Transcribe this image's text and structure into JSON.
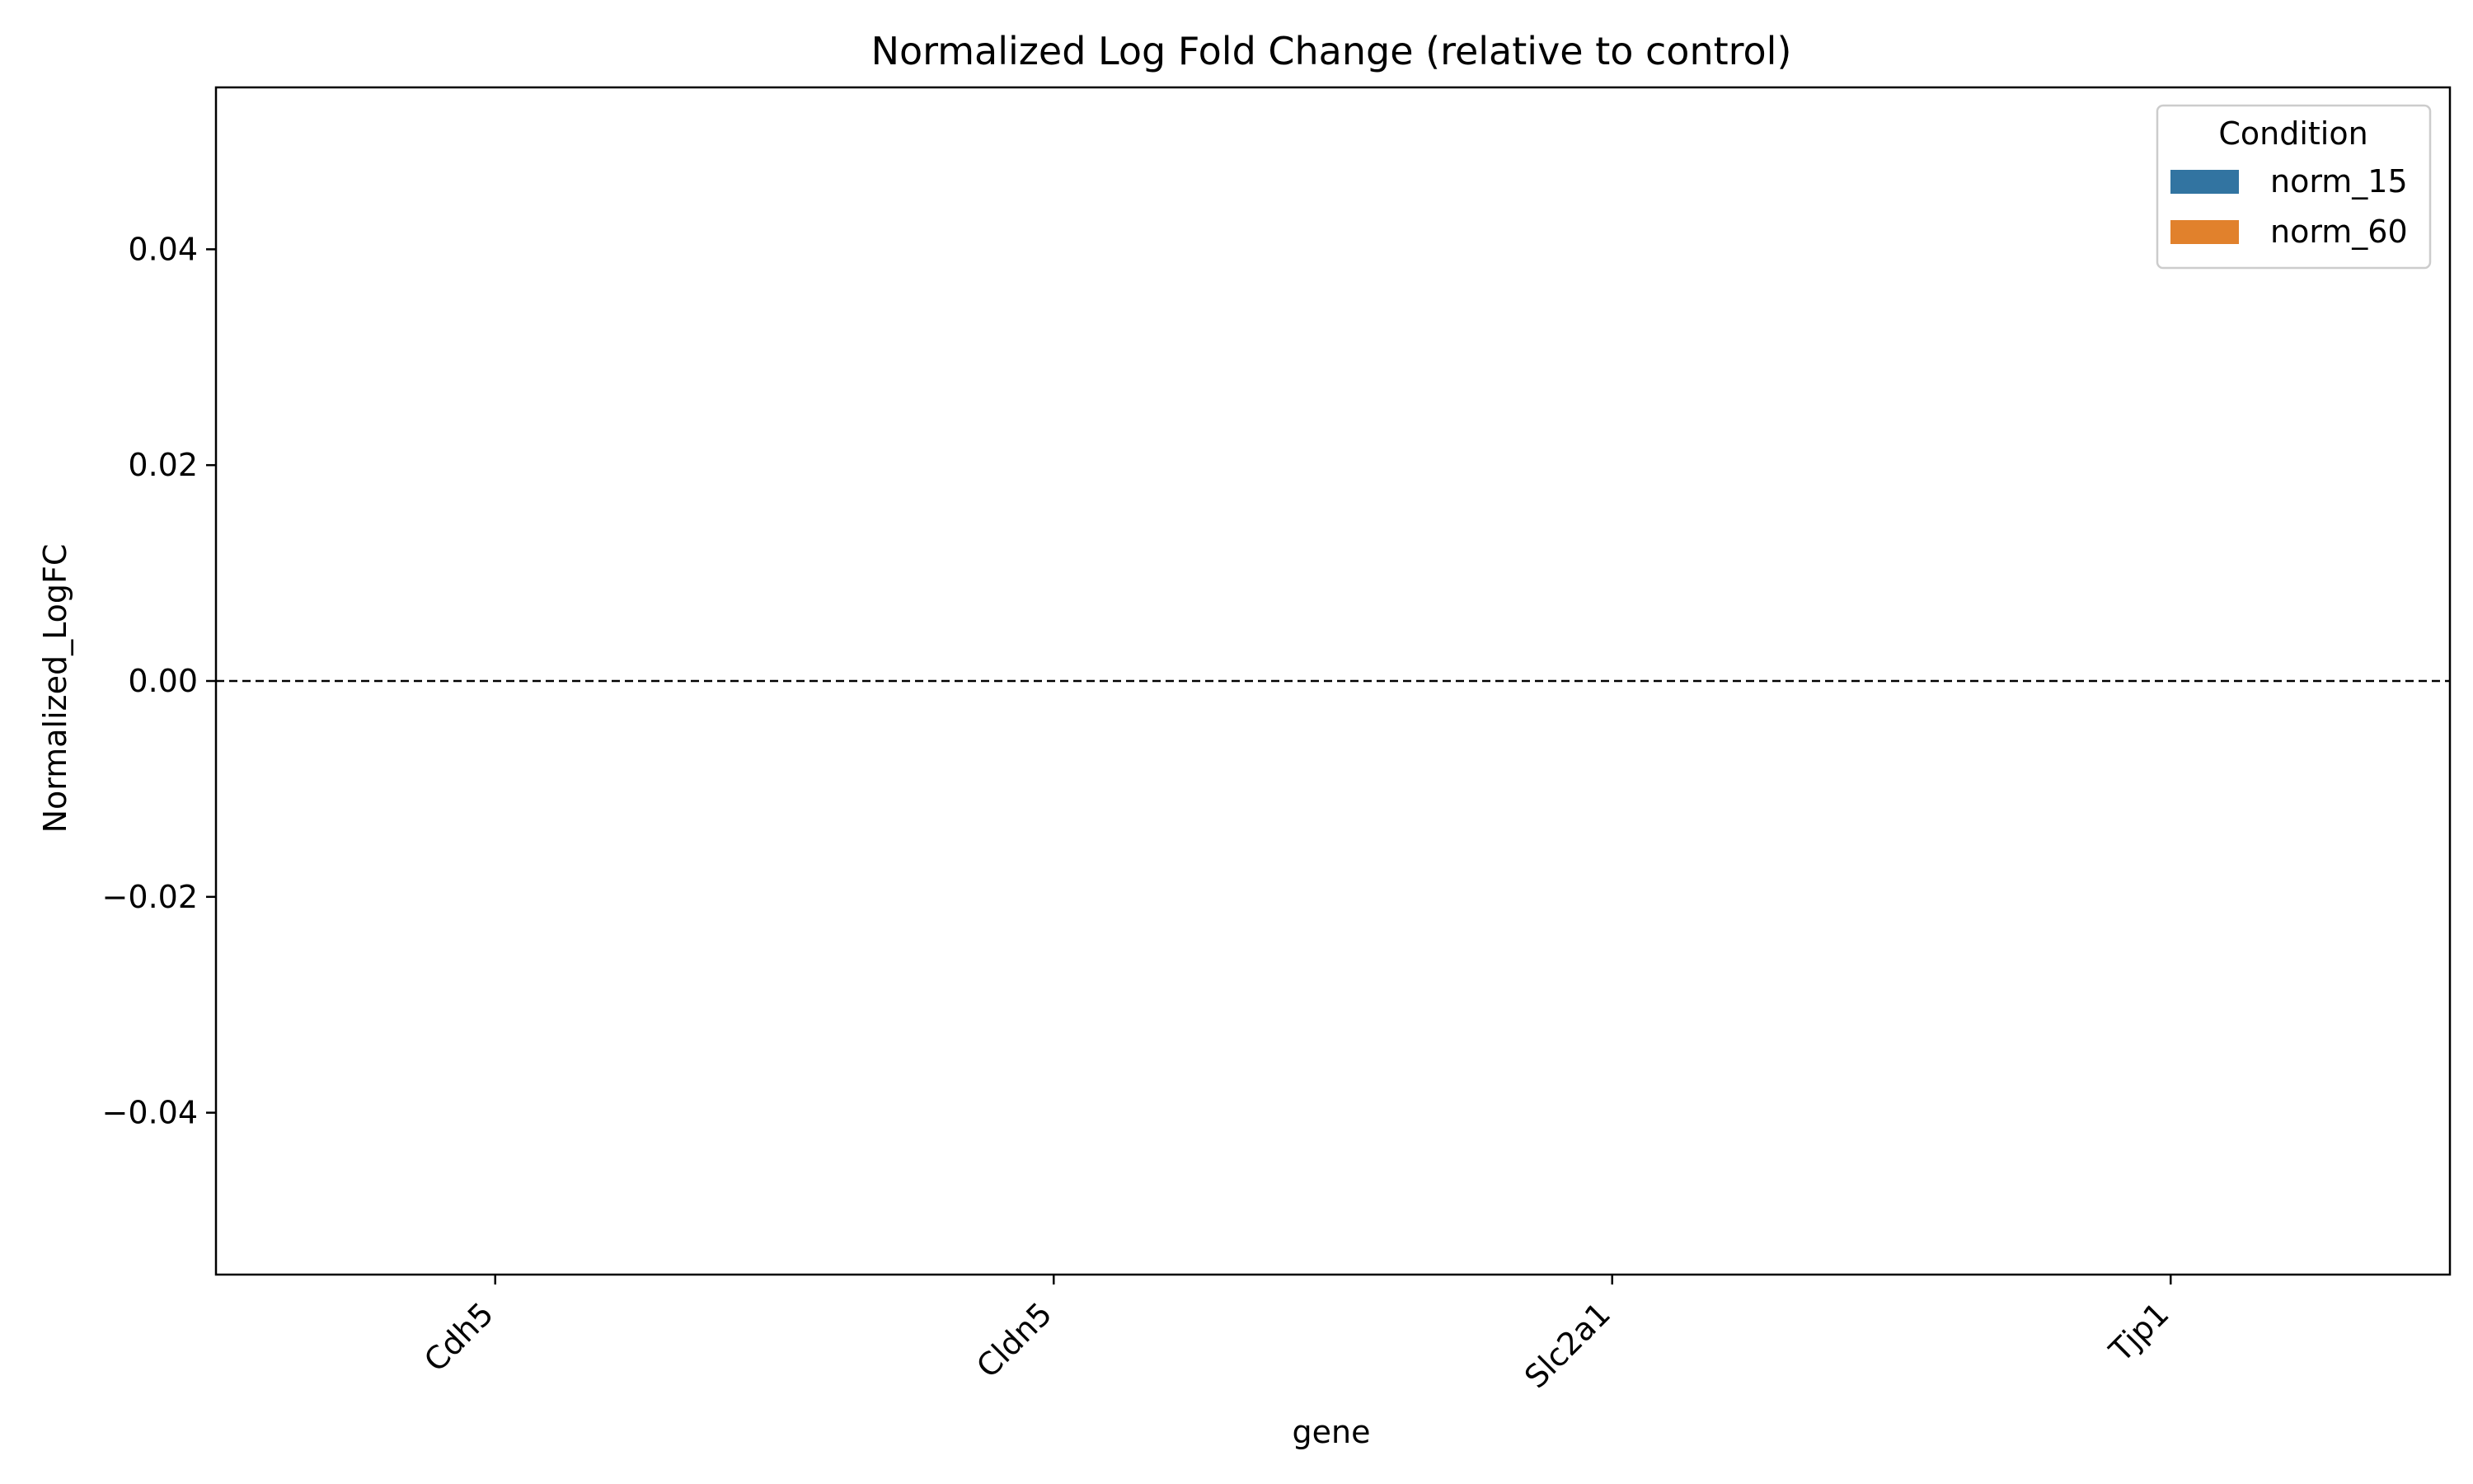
{
  "chart_data": {
    "type": "bar",
    "title": "Normalized Log Fold Change (relative to control)",
    "xlabel": "gene",
    "ylabel": "Normalized_LogFC",
    "categories": [
      "Cdh5",
      "Cldn5",
      "Slc2a1",
      "Tjp1"
    ],
    "series": [
      {
        "name": "norm_15",
        "color": "#3274a1",
        "values": [
          null,
          null,
          null,
          null
        ]
      },
      {
        "name": "norm_60",
        "color": "#e1812c",
        "values": [
          null,
          null,
          null,
          null
        ]
      }
    ],
    "ylim": [
      -0.055,
      0.055
    ],
    "yticks": [
      -0.04,
      -0.02,
      0.0,
      0.02,
      0.04
    ],
    "ytick_labels": [
      "−0.04",
      "−0.02",
      "0.00",
      "0.02",
      "0.04"
    ],
    "reference_line": {
      "y": 0,
      "style": "dashed"
    },
    "grid": false,
    "legend": {
      "title": "Condition",
      "placement": "top-right"
    }
  }
}
